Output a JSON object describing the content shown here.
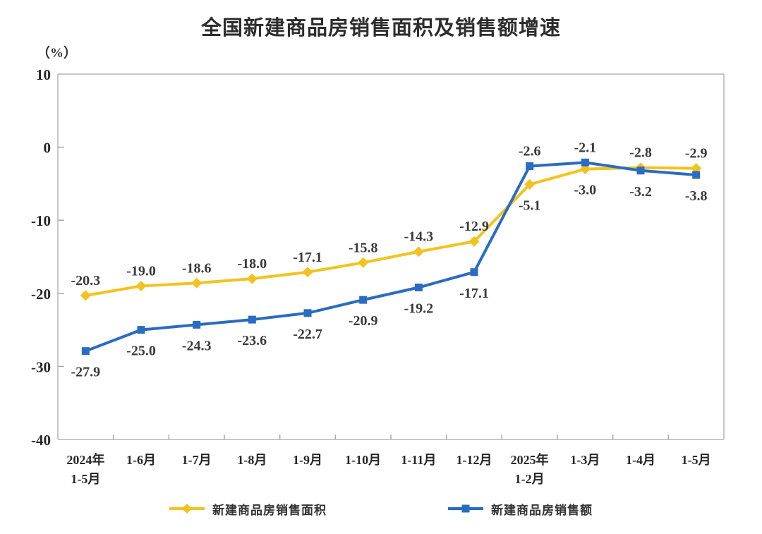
{
  "title": "全国新建商品房销售面积及销售额增速",
  "chart_data": {
    "type": "line",
    "title": "全国新建商品房销售面积及销售额增速",
    "unit_label": "（%）",
    "xlabel": "",
    "ylabel": "（%）",
    "categories": [
      "2024年\n1-5月",
      "1-6月",
      "1-7月",
      "1-8月",
      "1-9月",
      "1-10月",
      "1-11月",
      "1-12月",
      "2025年\n1-2月",
      "1-3月",
      "1-4月",
      "1-5月"
    ],
    "series": [
      {
        "name": "新建商品房销售面积",
        "color": "#F4C21F",
        "marker": "diamond",
        "values": [
          -20.3,
          -19.0,
          -18.6,
          -18.0,
          -17.1,
          -15.8,
          -14.3,
          -12.9,
          -5.1,
          -3.0,
          -2.8,
          -2.9
        ],
        "labels": [
          "-20.3",
          "-19.0",
          "-18.6",
          "-18.0",
          "-17.1",
          "-15.8",
          "-14.3",
          "-12.9",
          "-5.1",
          "-3.0",
          "-2.8",
          "-2.9"
        ],
        "label_side": [
          "above",
          "above",
          "above",
          "above",
          "above",
          "above",
          "above",
          "above",
          "below",
          "below",
          "above",
          "above"
        ]
      },
      {
        "name": "新建商品房销售额",
        "color": "#2A6CC0",
        "marker": "square",
        "values": [
          -27.9,
          -25.0,
          -24.3,
          -23.6,
          -22.7,
          -20.9,
          -19.2,
          -17.1,
          -2.6,
          -2.1,
          -3.2,
          -3.8
        ],
        "labels": [
          "-27.9",
          "-25.0",
          "-24.3",
          "-23.6",
          "-22.7",
          "-20.9",
          "-19.2",
          "-17.1",
          "-2.6",
          "-2.1",
          "-3.2",
          "-3.8"
        ],
        "label_side": [
          "below",
          "below",
          "below",
          "below",
          "below",
          "below",
          "below",
          "below",
          "above",
          "above",
          "below",
          "below"
        ]
      }
    ],
    "ylim": [
      -40,
      10
    ],
    "yticks": [
      10,
      0,
      -10,
      -20,
      -30,
      -40
    ],
    "grid": false,
    "legend_position": "bottom",
    "axis_color": "#b5b5b5",
    "tick_color": "#a8a8a8",
    "label_color": "#3a3a3a",
    "tick_label_color": "#262626"
  }
}
